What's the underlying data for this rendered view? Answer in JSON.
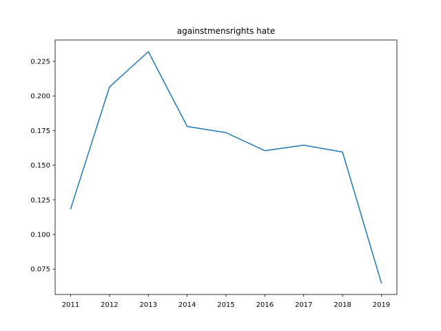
{
  "chart_data": {
    "type": "line",
    "title": "againstmensrights hate",
    "xlabel": "",
    "ylabel": "",
    "x": [
      2011,
      2012,
      2013,
      2014,
      2015,
      2016,
      2017,
      2018,
      2019
    ],
    "series": [
      {
        "values": [
          0.1185,
          0.2065,
          0.232,
          0.178,
          0.1735,
          0.1605,
          0.1645,
          0.1595,
          0.065
        ],
        "color": "#1f77b4"
      }
    ],
    "xlim": [
      2010.6,
      2019.4
    ],
    "ylim": [
      0.0567,
      0.2404
    ],
    "x_ticks": [
      "2011",
      "2012",
      "2013",
      "2014",
      "2015",
      "2016",
      "2017",
      "2018",
      "2019"
    ],
    "y_ticks": [
      "0.075",
      "0.100",
      "0.125",
      "0.150",
      "0.175",
      "0.200",
      "0.225"
    ],
    "grid": false,
    "legend": "none"
  }
}
